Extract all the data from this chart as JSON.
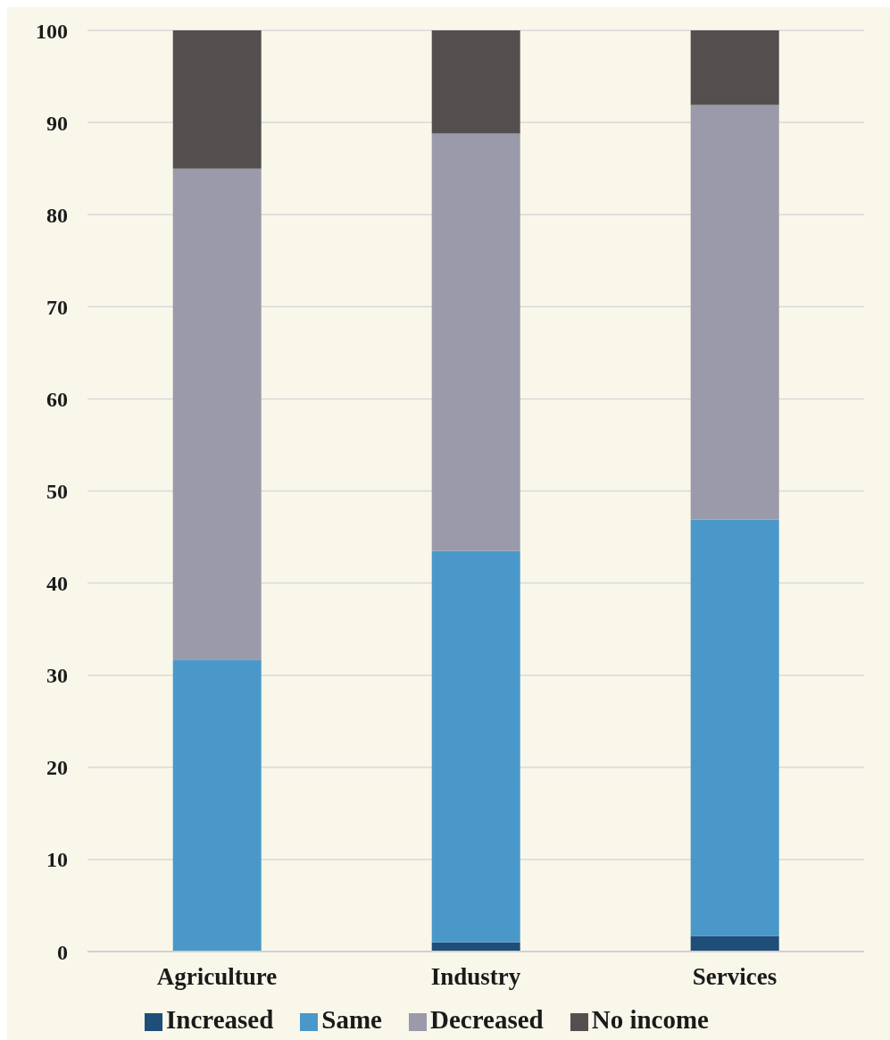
{
  "chart_data": {
    "type": "bar",
    "stacked": true,
    "categories": [
      "Agriculture",
      "Industry",
      "Services"
    ],
    "series": [
      {
        "name": "Increased",
        "color": "#1f4e79",
        "values": [
          0.1,
          1.0,
          1.7
        ]
      },
      {
        "name": "Same",
        "color": "#4a98c9",
        "values": [
          31.6,
          42.5,
          45.2
        ]
      },
      {
        "name": "Decreased",
        "color": "#9a9aaa",
        "values": [
          53.3,
          45.3,
          45.0
        ]
      },
      {
        "name": "No income",
        "color": "#544f4f",
        "values": [
          15,
          11.2,
          8.1
        ]
      }
    ],
    "ylim": [
      0,
      100
    ],
    "yticks": [
      0,
      10,
      20,
      30,
      40,
      50,
      60,
      70,
      80,
      90,
      100
    ],
    "grid": "y",
    "legend": "bottom"
  }
}
